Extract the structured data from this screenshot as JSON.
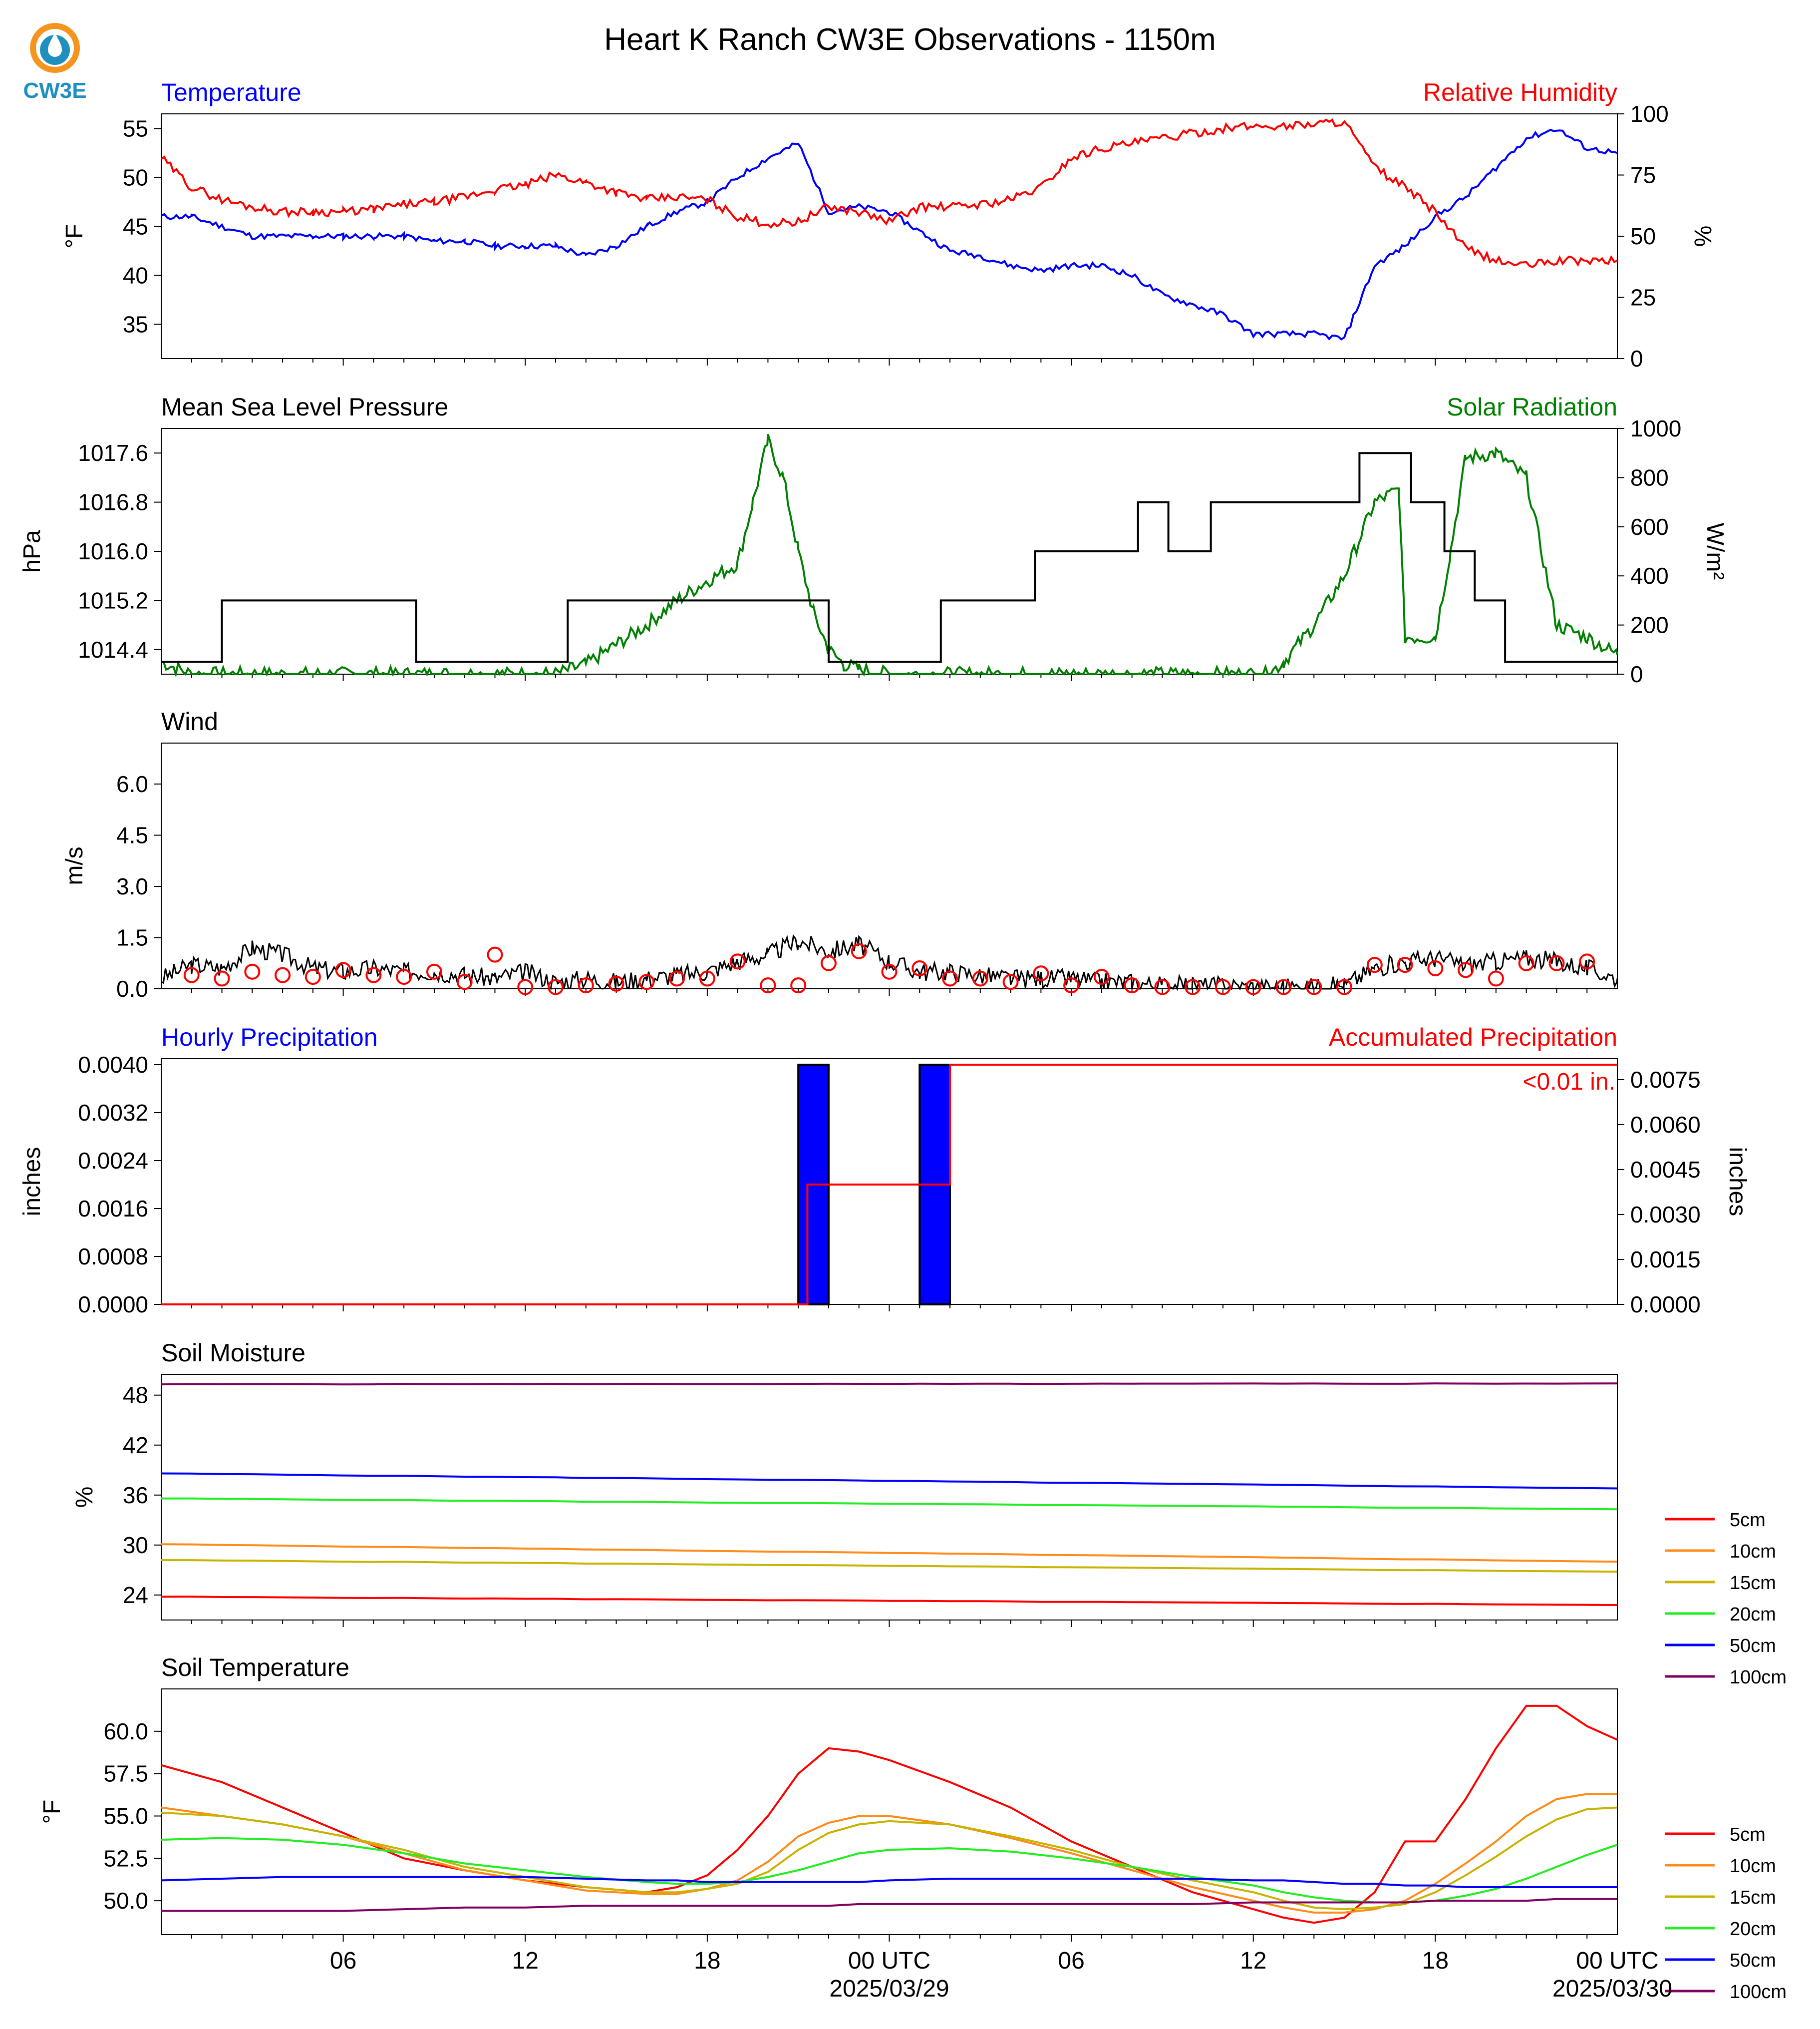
{
  "figure": {
    "title": "Heart K Ranch CW3E Observations - 1150m",
    "logo_text": "CW3E",
    "x_axis": {
      "ticks": [
        "06",
        "12",
        "18",
        "00 UTC",
        "06",
        "12",
        "18",
        "00 UTC"
      ],
      "dates": [
        "2025/03/29",
        "2025/03/30"
      ]
    }
  },
  "colors": {
    "blue": "#0000ff",
    "red": "#ff0000",
    "green": "#008000",
    "black": "#000000",
    "orange": "#ff8c1a",
    "olive": "#c8b400",
    "lime": "#22ee22",
    "purple": "#800060",
    "logo_orange": "#f7941d",
    "logo_blue": "#1f8fc0"
  },
  "chart_data": [
    {
      "type": "line",
      "title_left": "Temperature",
      "title_right": "Relative Humidity",
      "ylabel_left": "°F",
      "ylabel_right": "%",
      "yticks_left": [
        "35",
        "40",
        "45",
        "50",
        "55"
      ],
      "yticks_right": [
        "0",
        "25",
        "50",
        "75",
        "100"
      ],
      "ylim_left": [
        31.5,
        56.5
      ],
      "ylim_right": [
        0,
        100
      ],
      "x_hours": [
        0,
        1,
        2,
        3,
        4,
        5,
        6,
        7,
        8,
        9,
        10,
        11,
        12,
        13,
        14,
        15,
        16,
        17,
        18,
        19,
        20,
        21,
        22,
        23,
        24,
        25,
        26,
        27,
        28,
        29,
        30,
        31,
        32,
        33,
        34,
        35,
        36,
        37,
        38,
        39,
        40,
        41,
        42,
        43,
        44,
        45,
        46,
        47,
        48
      ],
      "series": [
        {
          "name": "Temperature",
          "axis": "left",
          "color": "blue",
          "values": [
            46,
            46,
            45,
            44,
            44,
            44,
            44,
            44,
            44,
            43.5,
            43.5,
            43,
            43,
            43,
            42,
            43,
            45,
            46.5,
            47.5,
            50,
            52,
            53.5,
            46.5,
            47,
            46.5,
            44.5,
            42.5,
            42,
            41,
            40.5,
            41,
            41,
            40,
            38,
            37,
            36,
            34,
            34,
            34,
            33.5,
            41,
            43,
            46,
            48,
            51,
            54,
            55,
            53,
            52.5
          ]
        },
        {
          "name": "Relative Humidity",
          "axis": "right",
          "color": "red",
          "values": [
            82,
            70,
            65,
            62,
            60,
            60,
            60,
            61,
            63,
            64,
            66,
            69,
            71,
            75,
            72,
            68,
            65,
            66,
            65,
            58,
            55,
            56,
            62,
            60,
            56,
            62,
            62,
            63,
            65,
            70,
            82,
            86,
            88,
            90,
            92,
            94,
            95,
            95,
            96,
            97,
            78,
            70,
            60,
            45,
            40,
            38,
            40,
            40,
            40
          ]
        }
      ]
    },
    {
      "type": "line",
      "title_left": "Mean Sea Level Pressure",
      "title_right": "Solar Radiation",
      "ylabel_left": "hPa",
      "ylabel_right": "W/m²",
      "yticks_left": [
        "1014.4",
        "1015.2",
        "1016.0",
        "1016.8",
        "1017.6"
      ],
      "yticks_right": [
        "0",
        "200",
        "400",
        "600",
        "800",
        "1000"
      ],
      "ylim_left": [
        1014.0,
        1018.0
      ],
      "ylim_right": [
        0,
        1000
      ],
      "pressure_steps": [
        [
          0,
          1014.2
        ],
        [
          2,
          1015.2
        ],
        [
          8.4,
          1014.2
        ],
        [
          13.4,
          1015.2
        ],
        [
          22,
          1014.2
        ],
        [
          25.7,
          1015.2
        ],
        [
          28.8,
          1016.0
        ],
        [
          32.2,
          1016.8
        ],
        [
          33.2,
          1016.0
        ],
        [
          34.6,
          1016.8
        ],
        [
          39.5,
          1017.6
        ],
        [
          41.2,
          1016.8
        ],
        [
          42.3,
          1016.0
        ],
        [
          43.3,
          1015.2
        ],
        [
          44.3,
          1014.2
        ],
        [
          48,
          1014.2
        ]
      ],
      "solar_hours": [
        0,
        1,
        13,
        14,
        15,
        16,
        17,
        18,
        19,
        19.5,
        20,
        20.5,
        21,
        21.5,
        22,
        22.5,
        23,
        24,
        36.5,
        37,
        38,
        39,
        40,
        40.8,
        41,
        42,
        42.5,
        43,
        44,
        45,
        46,
        47,
        48
      ],
      "solar_values": [
        50,
        0,
        0,
        40,
        120,
        200,
        300,
        380,
        450,
        700,
        950,
        800,
        500,
        250,
        100,
        40,
        20,
        0,
        0,
        50,
        200,
        400,
        700,
        750,
        150,
        150,
        500,
        880,
        900,
        800,
        200,
        150,
        80
      ],
      "series": [
        {
          "name": "Mean Sea Level Pressure",
          "axis": "left",
          "color": "black"
        },
        {
          "name": "Solar Radiation",
          "axis": "right",
          "color": "green"
        }
      ]
    },
    {
      "type": "line",
      "title_left": "Wind",
      "ylabel_left": "m/s",
      "yticks_left": [
        "0.0",
        "1.5",
        "3.0",
        "4.5",
        "6.0"
      ],
      "ylim_left": [
        0,
        7.2
      ],
      "x_hours": [
        0,
        1,
        2,
        3,
        4,
        5,
        6,
        7,
        8,
        9,
        10,
        11,
        12,
        13,
        14,
        15,
        16,
        17,
        18,
        19,
        20,
        21,
        22,
        23,
        24,
        25,
        26,
        27,
        28,
        29,
        30,
        31,
        32,
        33,
        34,
        35,
        36,
        37,
        38,
        39,
        40,
        41,
        42,
        43,
        44,
        45,
        46,
        47,
        48
      ],
      "series": [
        {
          "name": "Wind speed",
          "color": "black",
          "values": [
            0.3,
            0.7,
            0.6,
            1.2,
            1.0,
            0.6,
            0.5,
            0.6,
            0.5,
            0.5,
            0.4,
            0.3,
            0.5,
            0.2,
            0.3,
            0.2,
            0.3,
            0.4,
            0.5,
            0.8,
            1.0,
            1.4,
            1.1,
            1.3,
            0.8,
            0.5,
            0.5,
            0.4,
            0.3,
            0.3,
            0.3,
            0.2,
            0.2,
            0.1,
            0.1,
            0.1,
            0.05,
            0.05,
            0.05,
            0.1,
            0.6,
            0.8,
            0.9,
            0.7,
            0.8,
            0.9,
            0.8,
            0.6,
            0.3
          ]
        },
        {
          "name": "Wind gust markers",
          "color": "red",
          "marker": "circle",
          "x": [
            1,
            2,
            3,
            4,
            5,
            6,
            7,
            8,
            9,
            10,
            11,
            12,
            13,
            14,
            15,
            16,
            17,
            18,
            19,
            20,
            21,
            22,
            23,
            24,
            25,
            26,
            27,
            28,
            29,
            30,
            31,
            32,
            33,
            34,
            35,
            36,
            37,
            38,
            39,
            40,
            41,
            42,
            43,
            44,
            45,
            46,
            47
          ],
          "values": [
            0.4,
            0.3,
            0.5,
            0.4,
            0.35,
            0.55,
            0.4,
            0.35,
            0.5,
            0.2,
            1.0,
            0.05,
            0.05,
            0.1,
            0.15,
            0.2,
            0.3,
            0.3,
            0.8,
            0.1,
            0.1,
            0.75,
            1.1,
            0.5,
            0.6,
            0.3,
            0.3,
            0.2,
            0.45,
            0.1,
            0.35,
            0.1,
            0.05,
            0.05,
            0.05,
            0.05,
            0.05,
            0.05,
            0.05,
            0.7,
            0.7,
            0.6,
            0.55,
            0.3,
            0.75,
            0.75,
            0.8
          ]
        }
      ]
    },
    {
      "type": "bar",
      "title_left": "Hourly Precipitation",
      "title_right": "Accumulated Precipitation",
      "ylabel_left": "inches",
      "ylabel_right": "inches",
      "yticks_left": [
        "0.0000",
        "0.0008",
        "0.0016",
        "0.0024",
        "0.0032",
        "0.0040"
      ],
      "yticks_right": [
        "0.0000",
        "0.0015",
        "0.0030",
        "0.0045",
        "0.0060",
        "0.0075"
      ],
      "ylim_left": [
        0,
        0.0041
      ],
      "ylim_right": [
        0,
        0.0082
      ],
      "annotation": "<0.01 in.",
      "bars": [
        {
          "start": 21,
          "end": 22,
          "value": 0.004
        },
        {
          "start": 25,
          "end": 26,
          "value": 0.004
        }
      ],
      "accum_steps": [
        [
          0,
          0
        ],
        [
          21.3,
          0.004
        ],
        [
          26,
          0.008
        ],
        [
          48,
          0.008
        ]
      ],
      "series": [
        {
          "name": "Hourly Precipitation",
          "color": "blue"
        },
        {
          "name": "Accumulated Precipitation",
          "color": "red"
        }
      ]
    },
    {
      "type": "line",
      "title_left": "Soil Moisture",
      "ylabel_left": "%",
      "yticks_left": [
        "24",
        "30",
        "36",
        "42",
        "48"
      ],
      "ylim_left": [
        21,
        50.5
      ],
      "x_hours": [
        0,
        48
      ],
      "series": [
        {
          "name": "5cm",
          "color": "red",
          "values": [
            23.8,
            22.8
          ]
        },
        {
          "name": "10cm",
          "color": "orange",
          "values": [
            30.1,
            28.0
          ]
        },
        {
          "name": "15cm",
          "color": "olive",
          "values": [
            28.2,
            26.8
          ]
        },
        {
          "name": "20cm",
          "color": "lime",
          "values": [
            35.6,
            34.3
          ]
        },
        {
          "name": "50cm",
          "color": "blue",
          "values": [
            38.6,
            36.8
          ]
        },
        {
          "name": "100cm",
          "color": "purple",
          "values": [
            49.3,
            49.4
          ]
        }
      ]
    },
    {
      "type": "line",
      "title_left": "Soil Temperature",
      "ylabel_left": "°F",
      "yticks_left": [
        "50.0",
        "52.5",
        "55.0",
        "57.5",
        "60.0"
      ],
      "ylim_left": [
        48.0,
        62.5
      ],
      "x_hours": [
        0,
        2,
        4,
        6,
        8,
        10,
        12,
        14,
        16,
        17,
        18,
        19,
        20,
        21,
        22,
        23,
        24,
        26,
        28,
        30,
        32,
        34,
        36,
        37,
        38,
        39,
        40,
        41,
        42,
        43,
        44,
        45,
        46,
        47,
        48
      ],
      "series": [
        {
          "name": "5cm",
          "color": "red",
          "values": [
            58.0,
            57.0,
            55.5,
            54.0,
            52.5,
            51.8,
            51.2,
            50.8,
            50.5,
            50.8,
            51.5,
            53.0,
            55.0,
            57.5,
            59.0,
            58.8,
            58.3,
            57.0,
            55.5,
            53.5,
            52.0,
            50.5,
            49.5,
            49.0,
            48.7,
            49.0,
            50.5,
            53.5,
            53.5,
            56.0,
            59.0,
            61.5,
            61.5,
            60.3,
            59.5
          ]
        },
        {
          "name": "10cm",
          "color": "orange",
          "values": [
            55.5,
            55.0,
            54.5,
            53.8,
            52.8,
            51.8,
            51.2,
            50.6,
            50.4,
            50.4,
            50.7,
            51.2,
            52.3,
            53.8,
            54.6,
            55.0,
            55.0,
            54.5,
            53.7,
            52.8,
            51.8,
            50.8,
            50.0,
            49.6,
            49.3,
            49.3,
            49.5,
            50.0,
            51.0,
            52.2,
            53.5,
            55.0,
            56.0,
            56.3,
            56.3
          ]
        },
        {
          "name": "15cm",
          "color": "olive",
          "values": [
            55.2,
            55.0,
            54.5,
            53.8,
            53.0,
            52.0,
            51.4,
            50.8,
            50.5,
            50.5,
            50.7,
            51.0,
            51.7,
            53.0,
            54.0,
            54.5,
            54.7,
            54.5,
            53.8,
            53.0,
            52.0,
            51.2,
            50.5,
            50.0,
            49.6,
            49.5,
            49.6,
            49.8,
            50.5,
            51.5,
            52.6,
            53.8,
            54.8,
            55.4,
            55.5
          ]
        },
        {
          "name": "20cm",
          "color": "lime",
          "values": [
            53.6,
            53.7,
            53.6,
            53.3,
            52.8,
            52.2,
            51.8,
            51.4,
            51.1,
            51.0,
            51.0,
            51.1,
            51.4,
            51.8,
            52.3,
            52.8,
            53.0,
            53.1,
            52.9,
            52.5,
            52.0,
            51.4,
            50.9,
            50.5,
            50.2,
            50.0,
            49.9,
            49.9,
            50.0,
            50.3,
            50.7,
            51.3,
            52.0,
            52.7,
            53.3
          ]
        },
        {
          "name": "50cm",
          "color": "blue",
          "values": [
            51.2,
            51.3,
            51.4,
            51.4,
            51.4,
            51.4,
            51.4,
            51.3,
            51.2,
            51.2,
            51.1,
            51.1,
            51.1,
            51.1,
            51.1,
            51.1,
            51.2,
            51.3,
            51.3,
            51.3,
            51.3,
            51.3,
            51.2,
            51.2,
            51.1,
            51.0,
            51.0,
            50.9,
            50.9,
            50.8,
            50.8,
            50.8,
            50.8,
            50.8,
            50.8
          ]
        },
        {
          "name": "100cm",
          "color": "purple",
          "values": [
            49.4,
            49.4,
            49.4,
            49.4,
            49.5,
            49.6,
            49.6,
            49.7,
            49.7,
            49.7,
            49.7,
            49.7,
            49.7,
            49.7,
            49.7,
            49.8,
            49.8,
            49.8,
            49.8,
            49.8,
            49.8,
            49.8,
            49.9,
            49.9,
            49.9,
            49.9,
            49.9,
            49.9,
            50.0,
            50.0,
            50.0,
            50.0,
            50.1,
            50.1,
            50.1
          ]
        }
      ]
    }
  ]
}
